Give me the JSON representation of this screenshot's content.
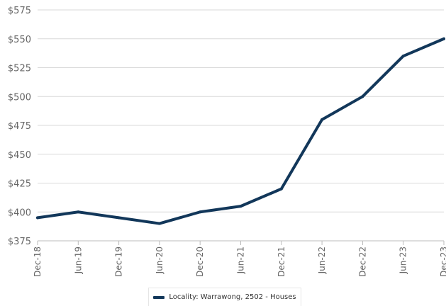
{
  "chart_data": {
    "type": "line",
    "categories": [
      "Dec-18",
      "Jun-19",
      "Dec-19",
      "Jun-20",
      "Dec-20",
      "Jun-21",
      "Dec-21",
      "Jun-22",
      "Dec-22",
      "Jun-23",
      "Dec-23"
    ],
    "series": [
      {
        "name": "Locality: Warrawong, 2502 - Houses",
        "values": [
          395,
          400,
          395,
          390,
          400,
          405,
          420,
          480,
          500,
          535,
          550
        ],
        "color": "#12375a"
      }
    ],
    "y_ticks": [
      "$375",
      "$400",
      "$425",
      "$450",
      "$475",
      "$500",
      "$525",
      "$550",
      "$575"
    ],
    "ylim": [
      375,
      575
    ],
    "grid": "horizontal",
    "legend_position": "bottom"
  }
}
